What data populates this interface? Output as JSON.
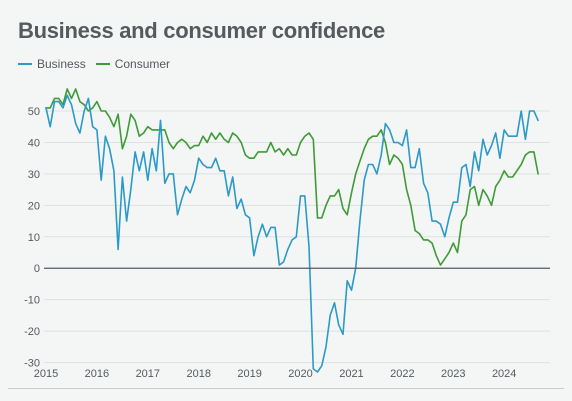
{
  "title": "Business and consumer confidence",
  "colors": {
    "business": "#2b9ac8",
    "consumer": "#3e9b36",
    "zero_line": "#555a5e",
    "grid": "#dfe1e2"
  },
  "chart_data": {
    "type": "line",
    "title": "Business and consumer confidence",
    "xlabel": "",
    "ylabel": "",
    "x_start": "2015-01",
    "x_step": "month",
    "xlim": [
      2015,
      2024.9
    ],
    "ylim": [
      -33,
      57
    ],
    "yticks": [
      50,
      40,
      30,
      20,
      10,
      0,
      -10,
      -20,
      -30
    ],
    "xticks": [
      "2015",
      "2016",
      "2017",
      "2018",
      "2019",
      "2020",
      "2021",
      "2022",
      "2023",
      "2024"
    ],
    "grid": true,
    "legend_position": "top-left",
    "series": [
      {
        "name": "Business",
        "color": "#2b9ac8",
        "values": [
          51,
          45,
          53,
          53,
          51,
          55,
          52,
          46,
          43,
          50,
          54,
          45,
          44,
          28,
          42,
          38,
          31,
          6,
          29,
          15,
          25,
          37,
          31,
          37,
          28,
          38,
          31,
          47,
          27,
          30,
          30,
          17,
          22,
          26,
          24,
          28,
          35,
          33,
          32,
          32,
          35,
          31,
          31,
          23,
          29,
          19,
          22,
          17,
          16,
          4,
          10,
          14,
          10,
          13,
          13,
          1,
          2,
          6,
          9,
          10,
          23,
          23,
          7,
          -32,
          -33,
          -31,
          -25,
          -15,
          -11,
          -18,
          -21,
          -4,
          -7,
          0,
          15,
          28,
          33,
          33,
          30,
          36,
          46,
          44,
          40,
          40,
          39,
          44,
          32,
          32,
          38,
          27,
          24,
          15,
          15,
          14,
          10,
          16,
          21,
          21,
          32,
          33,
          26,
          37,
          31,
          41,
          36,
          39,
          43,
          35,
          44,
          42,
          42,
          42,
          50,
          41,
          50,
          50,
          47
        ]
      },
      {
        "name": "Consumer",
        "color": "#3e9b36",
        "values": [
          51,
          51,
          54,
          54,
          52,
          57,
          54,
          57,
          53,
          52,
          50,
          51,
          53,
          50,
          50,
          48,
          45,
          49,
          38,
          42,
          49,
          47,
          42,
          43,
          45,
          44,
          44,
          44,
          44,
          40,
          38,
          40,
          41,
          40,
          38,
          39,
          39,
          42,
          40,
          43,
          41,
          43,
          41,
          40,
          43,
          42,
          40,
          36,
          35,
          35,
          37,
          37,
          37,
          40,
          37,
          38,
          36,
          38,
          36,
          36,
          40,
          42,
          43,
          41,
          16,
          16,
          20,
          23,
          23,
          25,
          19,
          17,
          24,
          30,
          34,
          38,
          41,
          42,
          42,
          44,
          40,
          33,
          36,
          35,
          33,
          25,
          20,
          12,
          11,
          9,
          9,
          8,
          4,
          1,
          3,
          5,
          8,
          5,
          15,
          17,
          25,
          26,
          20,
          25,
          23,
          20,
          26,
          28,
          31,
          29,
          29,
          31,
          33,
          36,
          37,
          37,
          30
        ]
      }
    ]
  }
}
